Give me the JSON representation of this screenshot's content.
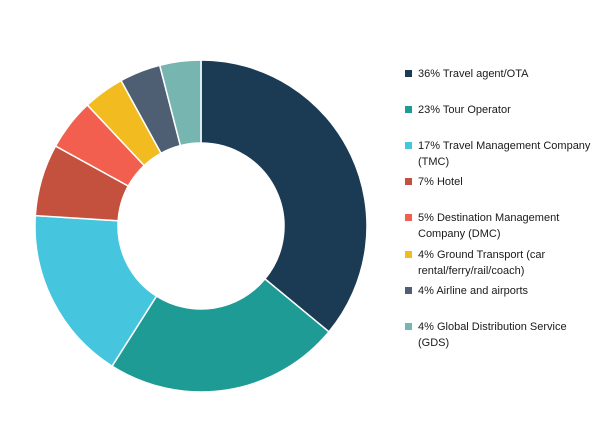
{
  "chart_data": {
    "type": "pie",
    "donut": true,
    "title": "",
    "legend_position": "right",
    "slices": [
      {
        "label": "36% Travel agent/OTA",
        "value": 36,
        "color": "#1b3a54"
      },
      {
        "label": "23% Tour Operator",
        "value": 23,
        "color": "#1f9b95"
      },
      {
        "label": "17% Travel Management Company\n(TMC)",
        "value": 17,
        "color": "#45c6de"
      },
      {
        "label": "7% Hotel",
        "value": 7,
        "color": "#c4503e"
      },
      {
        "label": "5% Destination Management\nCompany (DMC)",
        "value": 5,
        "color": "#f25f4e"
      },
      {
        "label": "4% Ground Transport (car\nrental/ferry/rail/coach)",
        "value": 4,
        "color": "#f2bb20"
      },
      {
        "label": "4% Airline and airports",
        "value": 4,
        "color": "#4f5f73"
      },
      {
        "label": "4% Global Distribution Service\n(GDS)",
        "value": 4,
        "color": "#77b5b0"
      }
    ]
  }
}
